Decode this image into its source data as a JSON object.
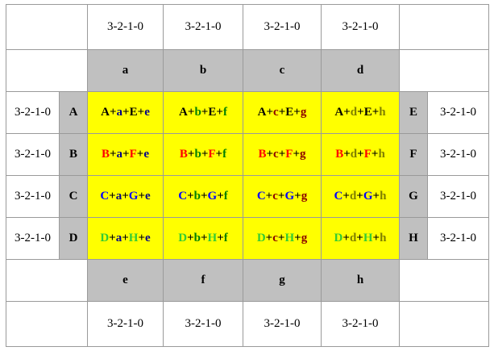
{
  "countdown": "3-2-1-0",
  "top_headers": [
    {
      "label": "a",
      "color": "#00008b"
    },
    {
      "label": "b",
      "color": "#008000"
    },
    {
      "label": "c",
      "color": "#8b0000"
    },
    {
      "label": "d",
      "color": "#808000"
    }
  ],
  "bottom_headers": [
    {
      "label": "e",
      "color": "#00008b"
    },
    {
      "label": "f",
      "color": "#008000"
    },
    {
      "label": "g",
      "color": "#8b0000"
    },
    {
      "label": "h",
      "color": "#808000"
    }
  ],
  "left_labels": [
    {
      "label": "A",
      "color": "#000000"
    },
    {
      "label": "B",
      "color": "#ff0000"
    },
    {
      "label": "C",
      "color": "#0000ff"
    },
    {
      "label": "D",
      "color": "#33cc33"
    }
  ],
  "right_labels": [
    {
      "label": "E",
      "color": "#000000"
    },
    {
      "label": "F",
      "color": "#ff0000"
    },
    {
      "label": "G",
      "color": "#0000ff"
    },
    {
      "label": "H",
      "color": "#33cc33"
    }
  ],
  "cells": [
    [
      "A+a+E+e",
      "A+b+E+f",
      "A+c+E+g",
      "A+d+E+h"
    ],
    [
      "B+a+F+e",
      "B+b+F+f",
      "B+c+F+g",
      "B+d+F+h"
    ],
    [
      "C+a+G+e",
      "C+b+G+f",
      "C+c+G+g",
      "C+d+G+h"
    ],
    [
      "D+a+H+e",
      "D+b+H+f",
      "D+c+H+g",
      "D+d+H+h"
    ]
  ]
}
